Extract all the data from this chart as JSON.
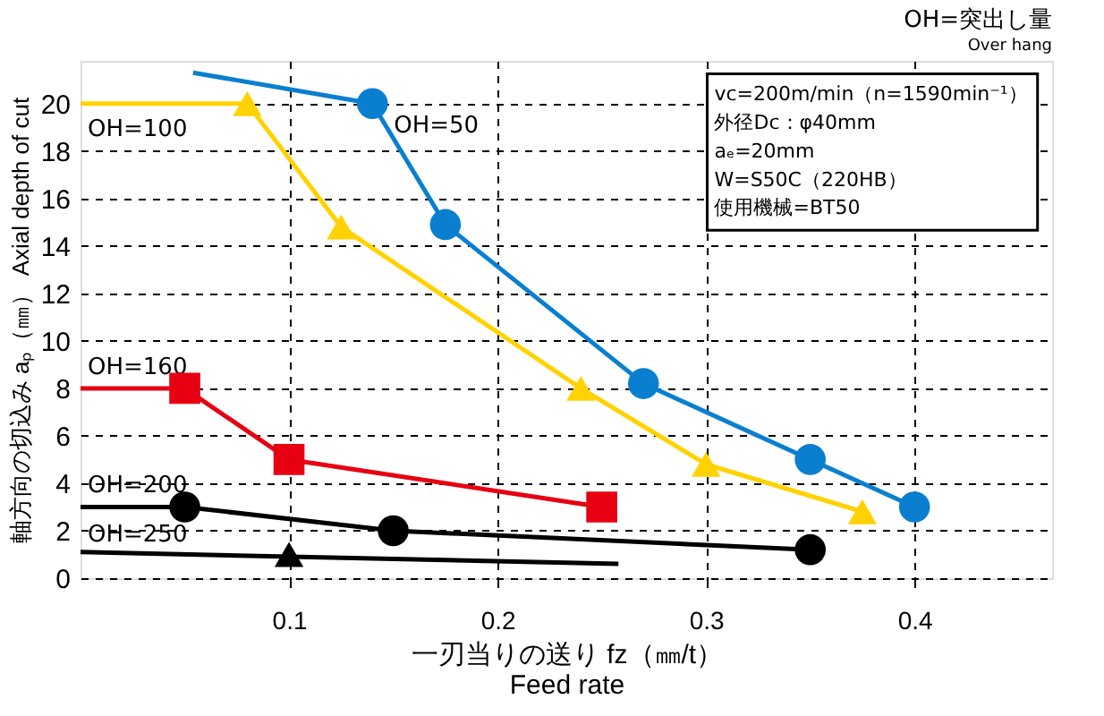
{
  "chart_data": {
    "type": "line",
    "title": "OH=突出し量",
    "subtitle": "Over hang",
    "xlabel": "一刃当りの送り fz（㎜/t）\nFeed rate",
    "ylabel": "軸方向の切込み aₚ（㎜）  Axial depth of cut",
    "xlim": [
      0,
      0.466
    ],
    "xticks": [
      0.1,
      0.2,
      0.3,
      0.4
    ],
    "ylim": [
      0,
      21.8
    ],
    "yticks": [
      0,
      2,
      4,
      6,
      8,
      10,
      12,
      14,
      16,
      18,
      20
    ],
    "grid": true,
    "legend": false,
    "line_style": "solid",
    "annotations": [
      "vc=200m/min（n=1590min⁻¹）",
      "外径Dc：φ40mm",
      "aₑ=20mm",
      "W=S50C（220HB）",
      "使用機械=BT50"
    ],
    "series": [
      {
        "name": "OH=50",
        "marker": "none",
        "color": "#0a7fd0",
        "x": [
          0.054,
          0.14,
          0.175,
          0.27,
          0.35,
          0.4
        ],
        "values": [
          21.3,
          20,
          14.9,
          8.2,
          5,
          3
        ]
      },
      {
        "type": "scatter",
        "marker": "circle",
        "color": "#0a7fd0",
        "x": [
          0.14,
          0.175,
          0.27,
          0.35,
          0.4
        ],
        "values": [
          20,
          14.9,
          8.2,
          5,
          3
        ]
      },
      {
        "name": "OH=100",
        "marker": "none",
        "color": "#ffd200",
        "x": [
          0,
          0.08,
          0.125,
          0.24,
          0.3,
          0.375
        ],
        "values": [
          20,
          20,
          14.8,
          8,
          4.8,
          2.8
        ]
      },
      {
        "type": "scatter",
        "marker": "triangle",
        "color": "#ffd200",
        "x": [
          0.08,
          0.125,
          0.24,
          0.3,
          0.375
        ],
        "values": [
          20,
          14.8,
          8,
          4.8,
          2.8
        ]
      },
      {
        "name": "OH=160",
        "marker": "none",
        "color": "#e60012",
        "x": [
          0,
          0.05,
          0.1,
          0.25
        ],
        "values": [
          8,
          8,
          5,
          3
        ]
      },
      {
        "type": "scatter",
        "marker": "square",
        "color": "#e60012",
        "x": [
          0.05,
          0.1,
          0.25
        ],
        "values": [
          8,
          5,
          3
        ]
      },
      {
        "name": "OH=200",
        "marker": "none",
        "color": "#000000",
        "x": [
          0,
          0.05,
          0.15,
          0.35
        ],
        "values": [
          3,
          3,
          2,
          1.2
        ]
      },
      {
        "type": "scatter",
        "marker": "circle",
        "color": "#000000",
        "x": [
          0.05,
          0.15,
          0.35
        ],
        "values": [
          3,
          2,
          1.2
        ]
      },
      {
        "name": "OH=250",
        "marker": "none",
        "color": "#000000",
        "x": [
          0,
          0.258
        ],
        "values": [
          1.1,
          0.6
        ]
      },
      {
        "type": "scatter",
        "marker": "triangle",
        "color": "#000000",
        "x": [
          0.1
        ],
        "values": [
          1
        ]
      }
    ]
  }
}
